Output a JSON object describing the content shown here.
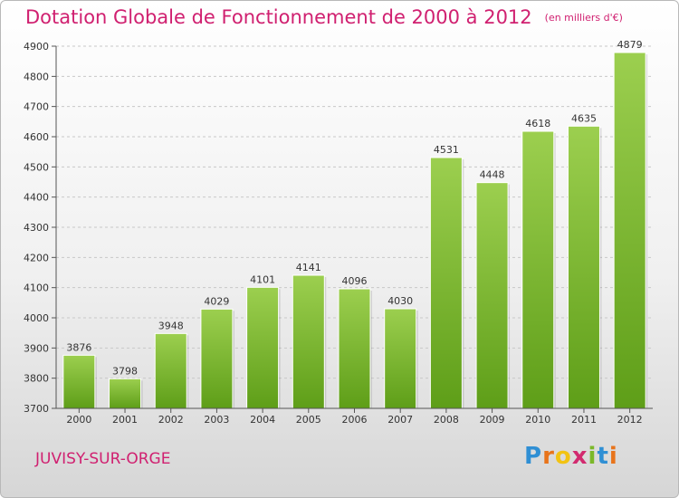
{
  "header": {
    "title": "Dotation Globale de Fonctionnement de 2000 à 2012",
    "unit": "(en milliers d'€)"
  },
  "footer": {
    "city": "JUVISY-SUR-ORGE",
    "logo": [
      "P",
      "r",
      "o",
      "x",
      "i",
      "t",
      "i"
    ],
    "logo_colors": [
      "#2f8fd4",
      "#e8741b",
      "#f2c313",
      "#d22a6f",
      "#7bb829",
      "#2f8fd4",
      "#e8741b"
    ]
  },
  "chart_data": {
    "type": "bar",
    "title": "Dotation Globale de Fonctionnement de 2000 à 2012",
    "subtitle": "(en milliers d'€)",
    "categories": [
      "2000",
      "2001",
      "2002",
      "2003",
      "2004",
      "2005",
      "2006",
      "2007",
      "2008",
      "2009",
      "2010",
      "2011",
      "2012"
    ],
    "values": [
      3876,
      3798,
      3948,
      4029,
      4101,
      4141,
      4096,
      4030,
      4531,
      4448,
      4618,
      4635,
      4879
    ],
    "ylim": [
      3700,
      4900
    ],
    "yticks": [
      3700,
      3800,
      3900,
      4000,
      4100,
      4200,
      4300,
      4400,
      4500,
      4600,
      4700,
      4800,
      4900
    ],
    "grid": true,
    "bar_color": "#7fc23a"
  }
}
